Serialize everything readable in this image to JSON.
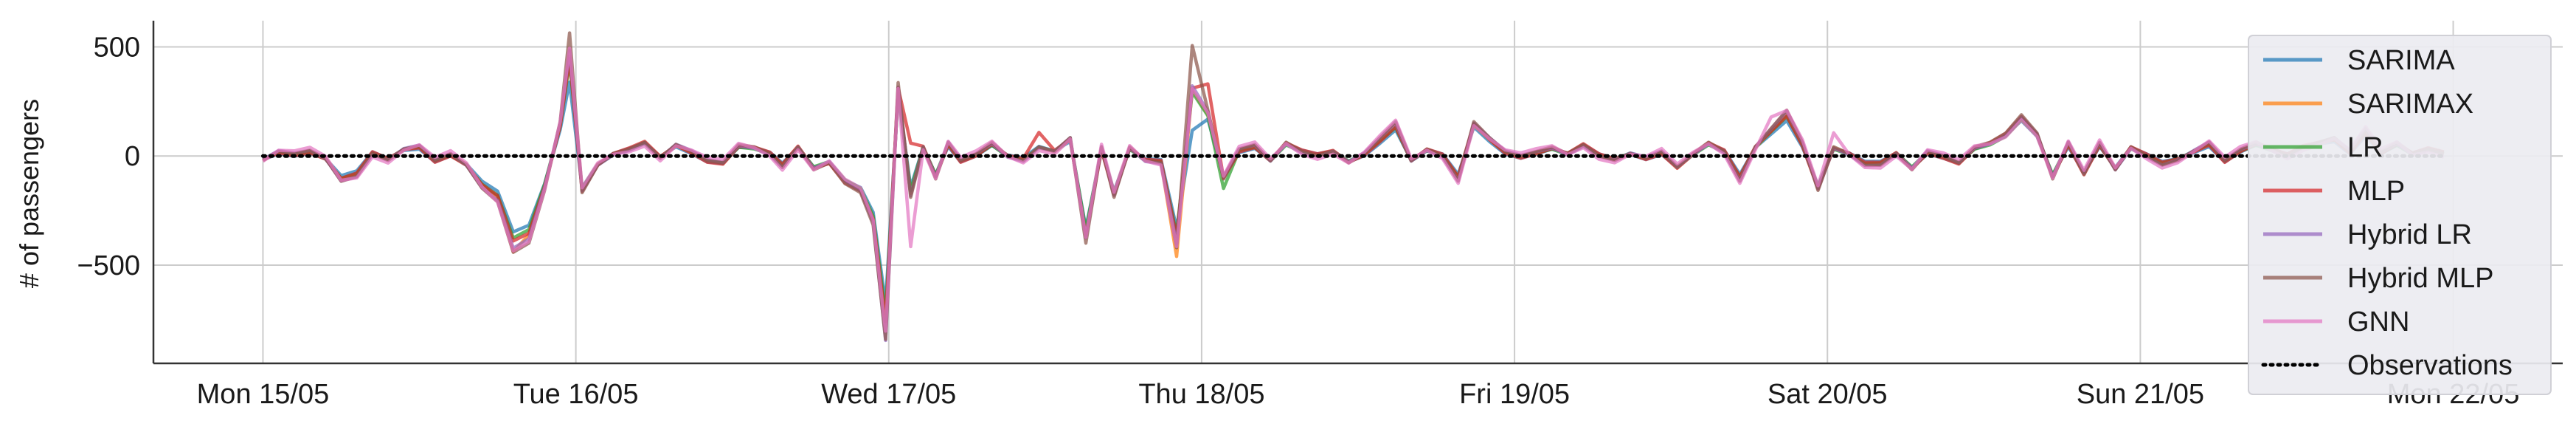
{
  "chart_data": {
    "type": "line",
    "title": "",
    "xlabel": "",
    "ylabel": "# of passengers",
    "x_start": "Mon 15/05",
    "x_end": "Mon 22/05",
    "xlim_days": [
      -0.35,
      7.35
    ],
    "ylim": [
      -950,
      620
    ],
    "grid": true,
    "legend_placement": "right",
    "x_ticks": [
      {
        "label": "Mon 15/05",
        "day": 0
      },
      {
        "label": "Tue 16/05",
        "day": 1
      },
      {
        "label": "Wed 17/05",
        "day": 2
      },
      {
        "label": "Thu 18/05",
        "day": 3
      },
      {
        "label": "Fri 19/05",
        "day": 4
      },
      {
        "label": "Sat 20/05",
        "day": 5
      },
      {
        "label": "Sun 21/05",
        "day": 6
      },
      {
        "label": "Mon 22/05",
        "day": 7
      }
    ],
    "y_ticks": [
      {
        "label": "500",
        "value": 500
      },
      {
        "label": "0",
        "value": 0
      },
      {
        "label": "−500",
        "value": -500
      }
    ],
    "colors": {
      "SARIMA": "#1f77b4",
      "SARIMAX": "#ff7f0e",
      "LR": "#2ca02c",
      "MLP": "#d62728",
      "Hybrid LR": "#9467bd",
      "Hybrid MLP": "#8c564b",
      "GNN": "#e377c2",
      "Observations": "#000000"
    },
    "base_residual": [
      [
        0.0,
        -20
      ],
      [
        0.05,
        20
      ],
      [
        0.1,
        10
      ],
      [
        0.15,
        25
      ],
      [
        0.2,
        -10
      ],
      [
        0.25,
        -110
      ],
      [
        0.3,
        -90
      ],
      [
        0.35,
        10
      ],
      [
        0.4,
        -20
      ],
      [
        0.45,
        30
      ],
      [
        0.5,
        45
      ],
      [
        0.55,
        -20
      ],
      [
        0.6,
        10
      ],
      [
        0.65,
        -40
      ],
      [
        0.7,
        -140
      ],
      [
        0.75,
        -200
      ],
      [
        0.8,
        -420
      ],
      [
        0.85,
        -380
      ],
      [
        0.9,
        -150
      ],
      [
        0.95,
        150
      ],
      [
        0.98,
        480
      ],
      [
        1.02,
        -160
      ],
      [
        1.07,
        -40
      ],
      [
        1.12,
        10
      ],
      [
        1.17,
        30
      ],
      [
        1.22,
        60
      ],
      [
        1.27,
        -10
      ],
      [
        1.32,
        50
      ],
      [
        1.37,
        20
      ],
      [
        1.42,
        -20
      ],
      [
        1.47,
        -30
      ],
      [
        1.52,
        50
      ],
      [
        1.57,
        40
      ],
      [
        1.62,
        10
      ],
      [
        1.66,
        -50
      ],
      [
        1.71,
        40
      ],
      [
        1.76,
        -60
      ],
      [
        1.81,
        -30
      ],
      [
        1.86,
        -120
      ],
      [
        1.91,
        -160
      ],
      [
        1.95,
        -300
      ],
      [
        1.99,
        -800
      ],
      [
        2.03,
        320
      ],
      [
        2.07,
        -180
      ],
      [
        2.11,
        40
      ],
      [
        2.15,
        -100
      ],
      [
        2.19,
        60
      ],
      [
        2.23,
        -20
      ],
      [
        2.28,
        10
      ],
      [
        2.33,
        60
      ],
      [
        2.38,
        0
      ],
      [
        2.43,
        -20
      ],
      [
        2.48,
        40
      ],
      [
        2.53,
        20
      ],
      [
        2.58,
        80
      ],
      [
        2.63,
        -380
      ],
      [
        2.68,
        40
      ],
      [
        2.72,
        -180
      ],
      [
        2.77,
        40
      ],
      [
        2.82,
        -20
      ],
      [
        2.87,
        -30
      ],
      [
        2.92,
        -400
      ],
      [
        2.97,
        320
      ],
      [
        3.02,
        200
      ],
      [
        3.07,
        -100
      ],
      [
        3.12,
        30
      ],
      [
        3.17,
        50
      ],
      [
        3.22,
        -20
      ],
      [
        3.27,
        60
      ],
      [
        3.32,
        20
      ],
      [
        3.37,
        0
      ],
      [
        3.42,
        20
      ],
      [
        3.47,
        -30
      ],
      [
        3.52,
        10
      ],
      [
        3.57,
        80
      ],
      [
        3.62,
        150
      ],
      [
        3.67,
        -20
      ],
      [
        3.72,
        30
      ],
      [
        3.77,
        0
      ],
      [
        3.82,
        -110
      ],
      [
        3.87,
        150
      ],
      [
        3.92,
        80
      ],
      [
        3.97,
        20
      ],
      [
        4.02,
        0
      ],
      [
        4.07,
        20
      ],
      [
        4.12,
        40
      ],
      [
        4.17,
        10
      ],
      [
        4.22,
        50
      ],
      [
        4.27,
        0
      ],
      [
        4.32,
        -20
      ],
      [
        4.37,
        10
      ],
      [
        4.42,
        -10
      ],
      [
        4.47,
        20
      ],
      [
        4.52,
        -50
      ],
      [
        4.57,
        10
      ],
      [
        4.62,
        60
      ],
      [
        4.67,
        20
      ],
      [
        4.72,
        -110
      ],
      [
        4.77,
        40
      ],
      [
        4.82,
        120
      ],
      [
        4.87,
        200
      ],
      [
        4.92,
        60
      ],
      [
        4.97,
        -150
      ],
      [
        5.02,
        40
      ],
      [
        5.07,
        10
      ],
      [
        5.12,
        -40
      ],
      [
        5.17,
        -40
      ],
      [
        5.22,
        10
      ],
      [
        5.27,
        -60
      ],
      [
        5.32,
        20
      ],
      [
        5.37,
        0
      ],
      [
        5.42,
        -30
      ],
      [
        5.47,
        40
      ],
      [
        5.52,
        60
      ],
      [
        5.57,
        100
      ],
      [
        5.62,
        180
      ],
      [
        5.67,
        100
      ],
      [
        5.72,
        -100
      ],
      [
        5.77,
        60
      ],
      [
        5.82,
        -80
      ],
      [
        5.87,
        60
      ],
      [
        5.92,
        -60
      ],
      [
        5.97,
        40
      ],
      [
        6.02,
        0
      ],
      [
        6.07,
        -40
      ],
      [
        6.12,
        -20
      ],
      [
        6.17,
        20
      ],
      [
        6.22,
        60
      ],
      [
        6.27,
        -20
      ],
      [
        6.32,
        30
      ],
      [
        6.37,
        60
      ],
      [
        6.42,
        30
      ],
      [
        6.47,
        0
      ],
      [
        6.52,
        40
      ],
      [
        6.57,
        60
      ],
      [
        6.62,
        80
      ],
      [
        6.67,
        20
      ],
      [
        6.72,
        120
      ],
      [
        6.77,
        20
      ],
      [
        6.82,
        60
      ],
      [
        6.87,
        10
      ],
      [
        6.92,
        30
      ],
      [
        6.97,
        10
      ]
    ],
    "series": [
      {
        "name": "SARIMA",
        "scale": 0.85,
        "offset": -10,
        "spikes": [
          [
            0.98,
            -60
          ],
          [
            2.97,
            -160
          ]
        ]
      },
      {
        "name": "SARIMAX",
        "scale": 0.95,
        "offset": 0,
        "spikes": [
          [
            0.8,
            -40
          ],
          [
            2.92,
            -80
          ]
        ]
      },
      {
        "name": "LR",
        "scale": 0.9,
        "offset": 5,
        "spikes": [
          [
            3.07,
            -60
          ]
        ]
      },
      {
        "name": "MLP",
        "scale": 0.95,
        "offset": 10,
        "spikes": [
          [
            2.07,
            220
          ],
          [
            3.02,
            140
          ],
          [
            2.48,
            60
          ]
        ]
      },
      {
        "name": "Hybrid LR",
        "scale": 1.0,
        "offset": -5,
        "spikes": [
          [
            1.99,
            -40
          ]
        ]
      },
      {
        "name": "Hybrid MLP",
        "scale": 1.05,
        "offset": 0,
        "spikes": [
          [
            2.97,
            170
          ],
          [
            0.98,
            60
          ]
        ]
      },
      {
        "name": "GNN",
        "scale": 1.0,
        "offset": 15,
        "spikes": [
          [
            2.07,
            -220
          ],
          [
            4.82,
            60
          ],
          [
            5.02,
            60
          ]
        ]
      }
    ],
    "observations": {
      "name": "Observations",
      "value": 0
    }
  }
}
